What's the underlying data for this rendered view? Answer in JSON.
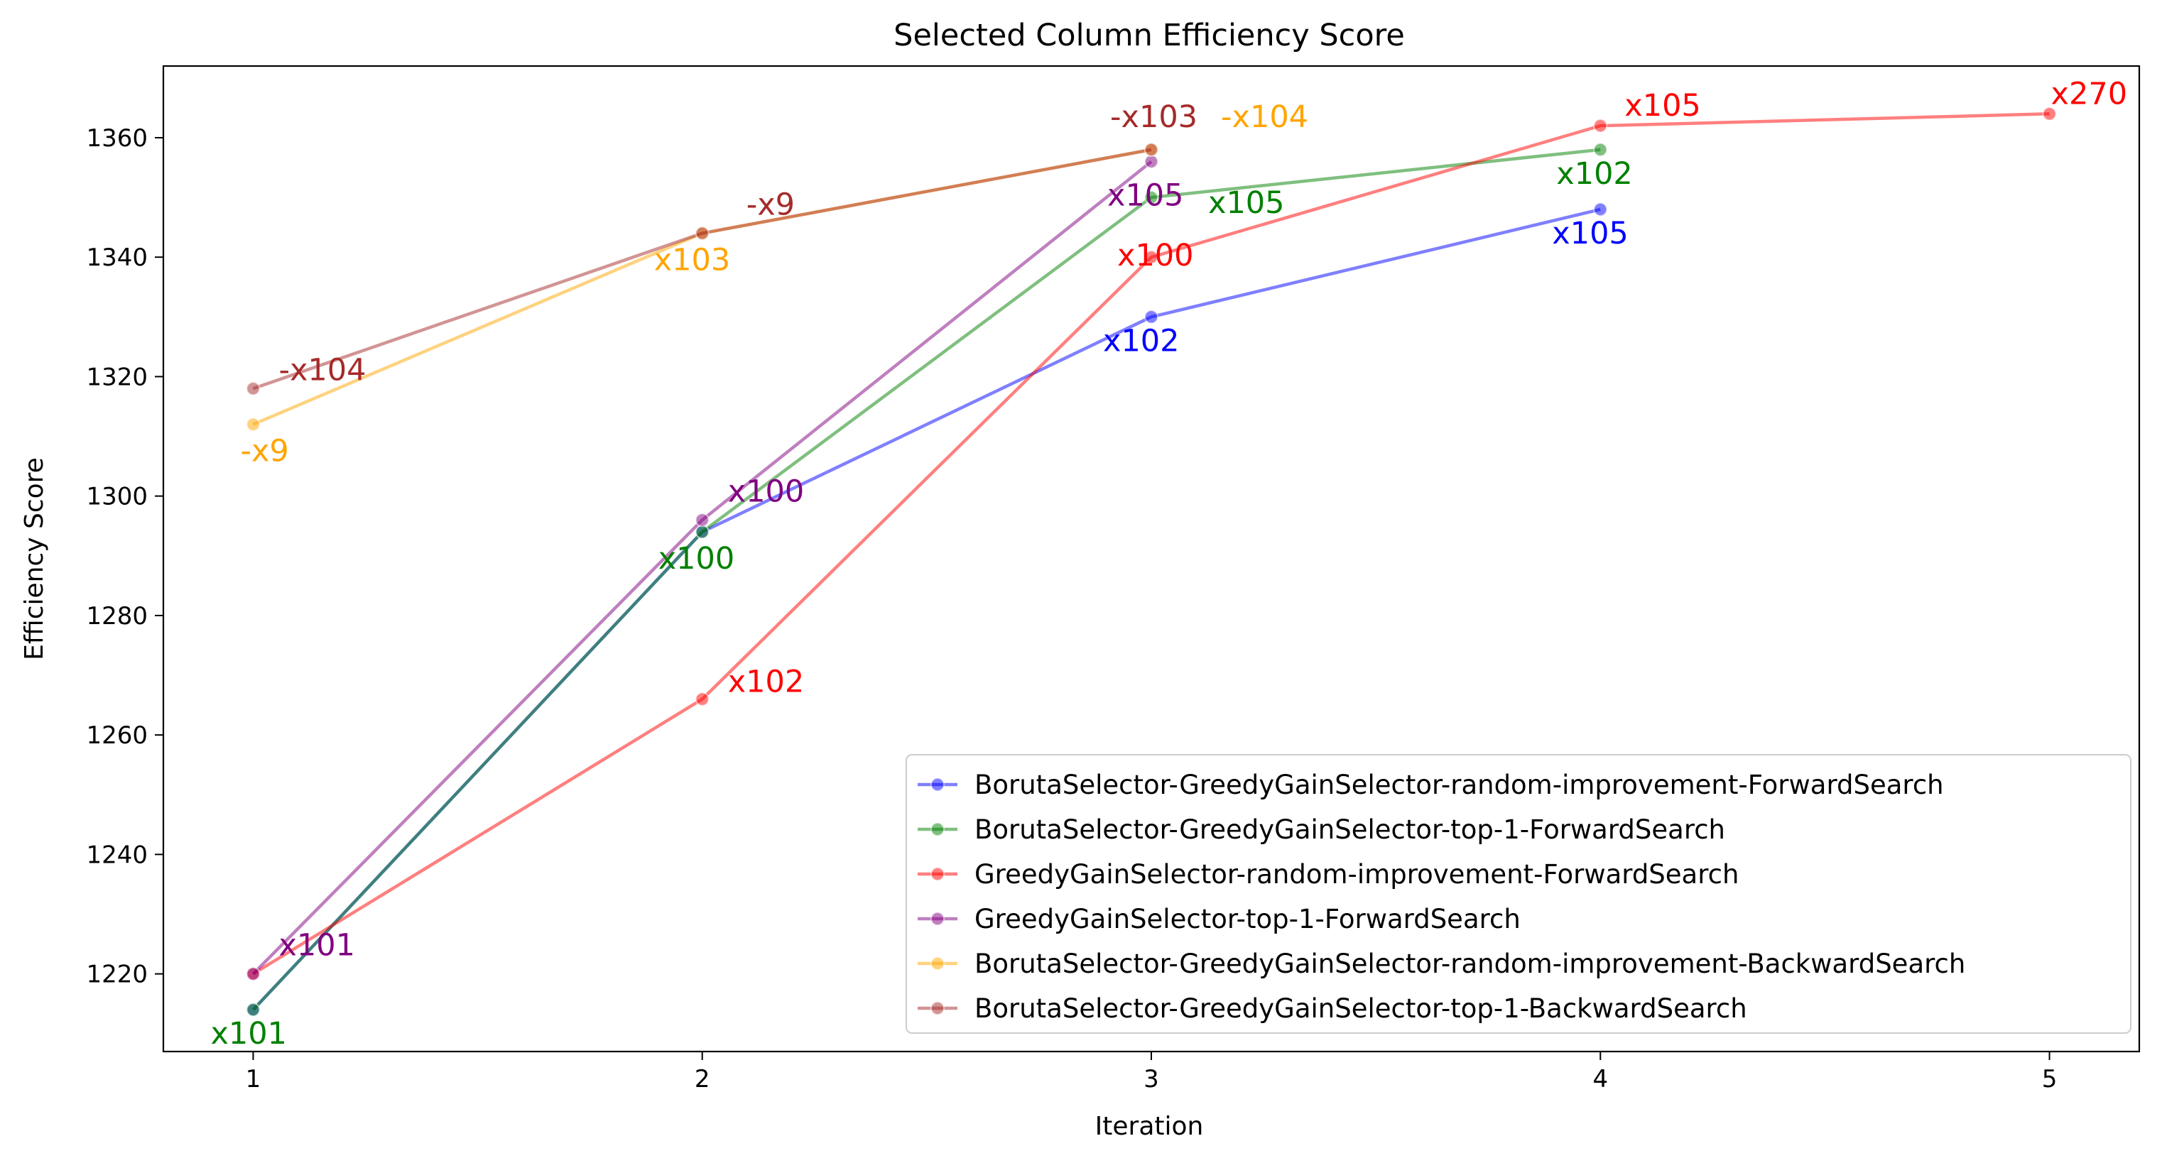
{
  "chart_data": {
    "type": "line",
    "title": "Selected Column Efficiency Score",
    "xlabel": "Iteration",
    "ylabel": "Efficiency Score",
    "xlim": [
      0.8,
      5.2
    ],
    "ylim": [
      1207,
      1372
    ],
    "xticks": [
      1,
      2,
      3,
      4,
      5
    ],
    "yticks": [
      1220,
      1240,
      1260,
      1280,
      1300,
      1320,
      1340,
      1360
    ],
    "grid": false,
    "legend_position": "lower-right",
    "series": [
      {
        "name": "BorutaSelector-GreedyGainSelector-random-improvement-ForwardSearch",
        "color": "#0000ff",
        "x": [
          1,
          2,
          3,
          4
        ],
        "y": [
          1214,
          1294,
          1330,
          1348
        ],
        "annotations": [
          {
            "i": 2,
            "text": "x102"
          },
          {
            "i": 3,
            "text": "x105"
          }
        ]
      },
      {
        "name": "BorutaSelector-GreedyGainSelector-top-1-ForwardSearch",
        "color": "#008000",
        "x": [
          1,
          2,
          3,
          4
        ],
        "y": [
          1214,
          1294,
          1350,
          1358
        ],
        "annotations": [
          {
            "i": 0,
            "text": "x101"
          },
          {
            "i": 1,
            "text": "x100"
          },
          {
            "i": 2,
            "text": "x105"
          },
          {
            "i": 3,
            "text": "x102"
          }
        ]
      },
      {
        "name": "GreedyGainSelector-random-improvement-ForwardSearch",
        "color": "#ff0000",
        "x": [
          1,
          2,
          3,
          4,
          5
        ],
        "y": [
          1220,
          1266,
          1340,
          1362,
          1364
        ],
        "annotations": [
          {
            "i": 1,
            "text": "x102"
          },
          {
            "i": 2,
            "text": "x100"
          },
          {
            "i": 3,
            "text": "x105"
          },
          {
            "i": 4,
            "text": "x270"
          }
        ]
      },
      {
        "name": "GreedyGainSelector-top-1-ForwardSearch",
        "color": "#800080",
        "x": [
          1,
          2,
          3
        ],
        "y": [
          1220,
          1296,
          1356
        ],
        "annotations": [
          {
            "i": 0,
            "text": "x101"
          },
          {
            "i": 1,
            "text": "x100"
          },
          {
            "i": 2,
            "text": "x105"
          }
        ]
      },
      {
        "name": "BorutaSelector-GreedyGainSelector-random-improvement-BackwardSearch",
        "color": "#ffa500",
        "x": [
          1,
          2,
          3
        ],
        "y": [
          1312,
          1344,
          1358
        ],
        "annotations": [
          {
            "i": 0,
            "text": "-x9"
          },
          {
            "i": 1,
            "text": "x103"
          },
          {
            "i": 2,
            "text": "-x104"
          }
        ]
      },
      {
        "name": "BorutaSelector-GreedyGainSelector-top-1-BackwardSearch",
        "color": "#a52a2a",
        "x": [
          1,
          2,
          3
        ],
        "y": [
          1318,
          1344,
          1358
        ],
        "annotations": [
          {
            "i": 0,
            "text": "-x104"
          },
          {
            "i": 1,
            "text": "-x9"
          },
          {
            "i": 2,
            "text": "-x103"
          }
        ]
      }
    ]
  }
}
